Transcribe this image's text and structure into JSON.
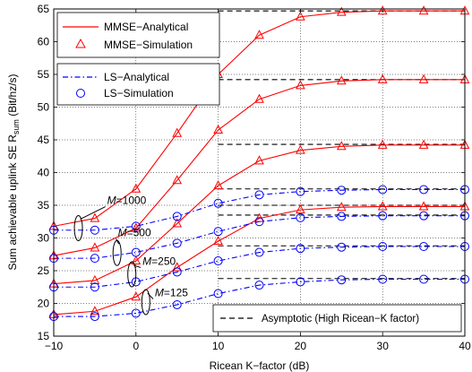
{
  "chart_data": {
    "type": "line",
    "xlabel": "Ricean K−factor (dB)",
    "ylabel": "Sum achievable uplink SE R",
    "ylabel_sub": "sum",
    "ylabel_unit": " (Bit/hz/s)",
    "xlim": [
      -10,
      40
    ],
    "ylim": [
      15,
      65
    ],
    "xticks": [
      -10,
      0,
      10,
      20,
      30,
      40
    ],
    "xtick_labels": [
      "−10",
      "0",
      "10",
      "20",
      "30",
      "40"
    ],
    "yticks": [
      15,
      20,
      25,
      30,
      35,
      40,
      45,
      50,
      55,
      60,
      65
    ],
    "yticks_labels": [
      "15",
      "20",
      "25",
      "30",
      "35",
      "40",
      "45",
      "50",
      "55",
      "60",
      "65"
    ],
    "grid": true,
    "colors": {
      "mmse": "#ff0000",
      "ls": "#0000ff",
      "asymptote": "#000000"
    },
    "x": [
      -10,
      -5,
      0,
      5,
      10,
      15,
      20,
      25,
      30,
      35,
      40
    ],
    "series": [
      {
        "group": "MMSE",
        "M": 1000,
        "values": [
          31.8,
          33.0,
          37.5,
          46.0,
          55.0,
          61.0,
          63.8,
          64.5,
          64.7,
          64.7,
          64.7
        ]
      },
      {
        "group": "MMSE",
        "M": 500,
        "values": [
          27.3,
          28.5,
          31.5,
          38.8,
          46.5,
          51.2,
          53.3,
          54.0,
          54.2,
          54.2,
          54.2
        ]
      },
      {
        "group": "MMSE",
        "M": 250,
        "values": [
          23.0,
          23.5,
          26.5,
          32.2,
          38.0,
          41.8,
          43.4,
          44.0,
          44.2,
          44.2,
          44.2
        ]
      },
      {
        "group": "MMSE",
        "M": 125,
        "values": [
          18.3,
          18.8,
          21.0,
          25.5,
          29.5,
          33.0,
          34.3,
          34.7,
          34.8,
          34.8,
          34.8
        ]
      },
      {
        "group": "LS",
        "M": 1000,
        "values": [
          31.2,
          31.2,
          31.8,
          33.3,
          35.3,
          36.6,
          37.1,
          37.3,
          37.4,
          37.4,
          37.4
        ]
      },
      {
        "group": "LS",
        "M": 500,
        "values": [
          26.9,
          26.9,
          27.8,
          29.2,
          31.0,
          32.5,
          33.1,
          33.3,
          33.4,
          33.4,
          33.4
        ]
      },
      {
        "group": "LS",
        "M": 250,
        "values": [
          22.5,
          22.5,
          23.3,
          24.8,
          26.5,
          27.8,
          28.4,
          28.6,
          28.7,
          28.7,
          28.7
        ]
      },
      {
        "group": "LS",
        "M": 125,
        "values": [
          18.0,
          18.0,
          18.5,
          19.8,
          21.5,
          22.8,
          23.3,
          23.6,
          23.7,
          23.7,
          23.7
        ]
      }
    ],
    "asymptotes": [
      64.7,
      54.2,
      44.3,
      37.5,
      35.0,
      33.5,
      28.8,
      23.8
    ],
    "legend_top": {
      "placement": "top-left",
      "entries": [
        "MMSE−Analytical",
        "MMSE−Simulation"
      ]
    },
    "legend_mid": {
      "placement": "upper-left",
      "entries": [
        "LS−Analytical",
        "LS−Simulation"
      ]
    },
    "legend_bottom": {
      "placement": "bottom-right",
      "entry": "Asymptotic (High Ricean−K factor)"
    },
    "annotations": [
      {
        "var": "M",
        "value": "=1000"
      },
      {
        "var": "M",
        "value": "=500"
      },
      {
        "var": "M",
        "value": "=250"
      },
      {
        "var": "M",
        "value": "=125"
      }
    ]
  }
}
